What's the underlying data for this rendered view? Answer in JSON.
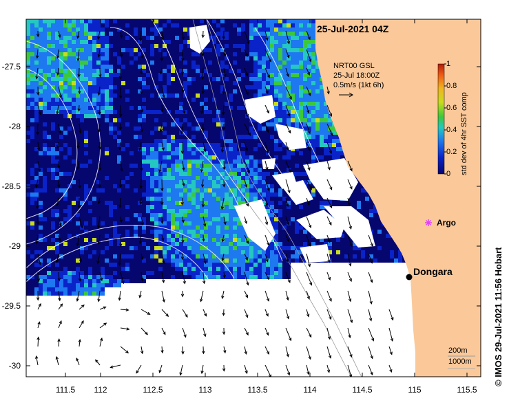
{
  "title": "25-Jul-2021 04Z",
  "current_legend": {
    "line1": "NRT00 GSL",
    "line2": "25-Jul 18:00Z",
    "line3": "0.5m/s (1kt 6h)"
  },
  "colorbar": {
    "title": "std dev of 4hr SST comp",
    "ticks": [
      "0",
      "0.2",
      "0.4",
      "0.6",
      "0.8",
      "1"
    ],
    "range": [
      0,
      1
    ],
    "colors": [
      "#06066f",
      "#0a23c8",
      "#1e78f0",
      "#24c8c0",
      "#3cc83c",
      "#c8dc1e",
      "#f0b41e",
      "#f05a14",
      "#b41e0a"
    ]
  },
  "axes": {
    "lat_ticks": [
      "-27.5",
      "-28",
      "-28.5",
      "-29",
      "-29.5",
      "-30"
    ],
    "lon_ticks": [
      "111.5",
      "112",
      "112.5",
      "113",
      "113.5",
      "114",
      "114.5",
      "115",
      "115.5"
    ]
  },
  "places": {
    "dongara": "Dongara",
    "argo": "Argo"
  },
  "depth_scale": {
    "contour1": "200m",
    "contour2": "1000m"
  },
  "credit": "© IMOS 29-Jul-2021 11:56 Hobart",
  "colors": {
    "land": "#fbc899",
    "ocean_dark": "#0a0a7a",
    "argo": "#e040fb"
  }
}
